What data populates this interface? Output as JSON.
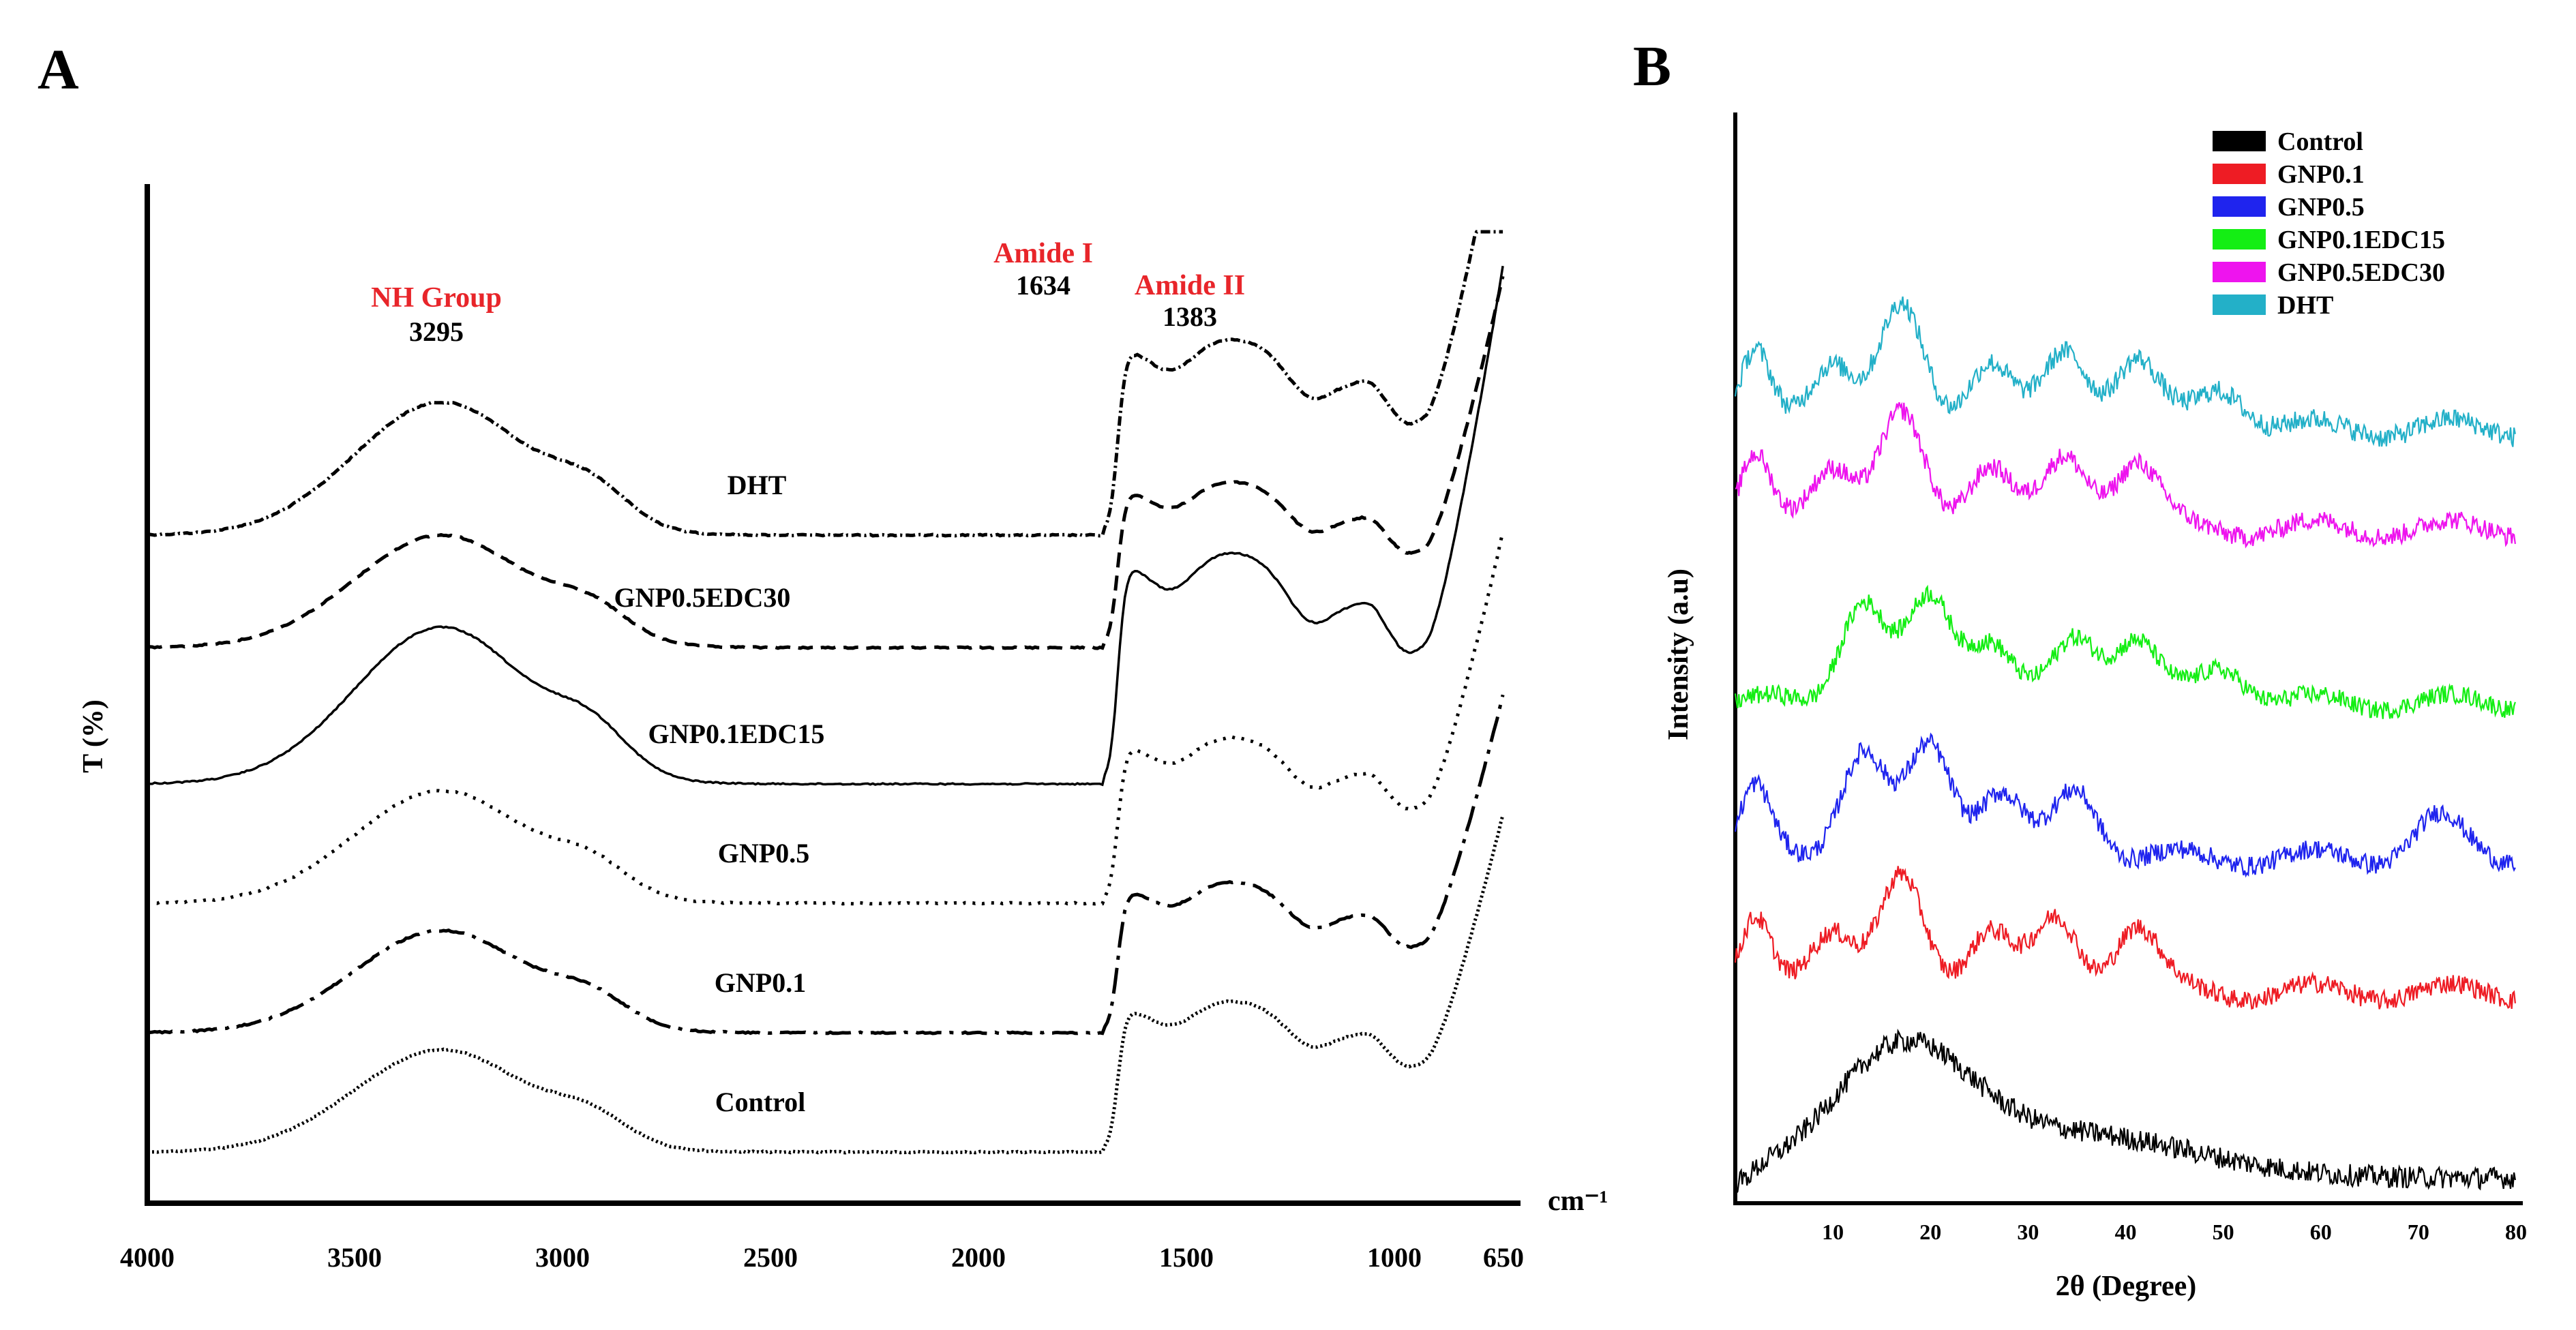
{
  "panels": {
    "a_letter": "A",
    "b_letter": "B"
  },
  "chart_data": [
    {
      "type": "line",
      "panel": "A",
      "ylabel": "T (%)",
      "x_unit_label": "cm⁻¹",
      "x_reversed": true,
      "xlim": [
        4000,
        650
      ],
      "x_ticks": [
        "4000",
        "3500",
        "3000",
        "2500",
        "2000",
        "1500",
        "1000",
        "650"
      ],
      "y_scale": "arbitrary (curves vertically offset)",
      "annotations": [
        {
          "label": "NH Group",
          "value": "3295",
          "x": 3295
        },
        {
          "label": "Amide I",
          "value": "1634",
          "x": 1634
        },
        {
          "label": "Amide II",
          "value": "1383",
          "x": 1383
        }
      ],
      "series": [
        {
          "name": "DHT",
          "style": "dash-dot-fine",
          "offset": 0
        },
        {
          "name": "GNP0.5EDC30",
          "style": "dashed",
          "offset": 1
        },
        {
          "name": "GNP0.1EDC15",
          "style": "solid",
          "offset": 2
        },
        {
          "name": "GNP0.5",
          "style": "dotted",
          "offset": 3
        },
        {
          "name": "GNP0.1",
          "style": "long-dash-dot",
          "offset": 4
        },
        {
          "name": "Control",
          "style": "fine-dotted",
          "offset": 5
        }
      ],
      "grid": false
    },
    {
      "type": "line",
      "panel": "B",
      "xlabel": "2θ (Degree)",
      "ylabel": "Intensity (a.u)",
      "xlim": [
        0,
        80
      ],
      "x_ticks": [
        "10",
        "20",
        "30",
        "40",
        "50",
        "60",
        "70",
        "80"
      ],
      "y_scale": "arbitrary (curves vertically offset)",
      "legend_position": "top-right",
      "series": [
        {
          "name": "Control",
          "color": "#000000",
          "peaks_2theta": [
            17
          ]
        },
        {
          "name": "GNP0.1",
          "color": "#ee1c24",
          "peaks_2theta": [
            2,
            10,
            17,
            26,
            33,
            41
          ]
        },
        {
          "name": "GNP0.5",
          "color": "#1f24ee",
          "peaks_2theta": [
            2,
            13,
            20,
            27,
            35,
            72
          ]
        },
        {
          "name": "GNP0.1EDC15",
          "color": "#14ee14",
          "peaks_2theta": [
            13,
            20,
            26,
            35,
            41,
            50
          ]
        },
        {
          "name": "GNP0.5EDC30",
          "color": "#ee14ee",
          "peaks_2theta": [
            2,
            10,
            17,
            26,
            34,
            41
          ]
        },
        {
          "name": "DHT",
          "color": "#23b0c8",
          "peaks_2theta": [
            2,
            10,
            17,
            26,
            34,
            41,
            50
          ]
        }
      ],
      "grid": false
    }
  ]
}
